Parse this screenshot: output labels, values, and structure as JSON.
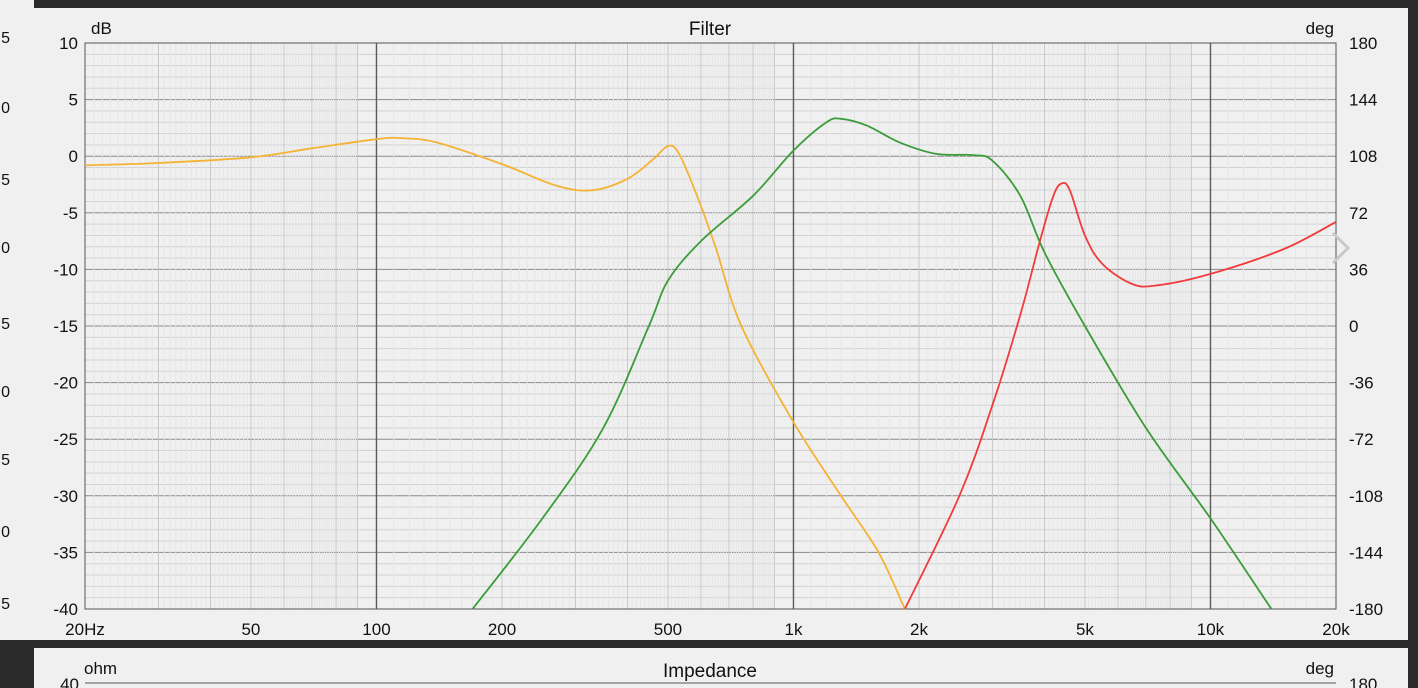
{
  "left_strip_labels": [
    "5",
    "0",
    "5",
    "0",
    "5",
    "0",
    "5",
    "0",
    "5"
  ],
  "chart_data": [
    {
      "type": "line",
      "title": "Filter",
      "xlabel": "",
      "ylabel": "dB",
      "y2label": "deg",
      "x_scale": "log",
      "xlim": [
        20,
        20000
      ],
      "ylim": [
        -40,
        10
      ],
      "y2lim": [
        -180,
        180
      ],
      "x_ticks": [
        {
          "value": 20,
          "label": "20Hz"
        },
        {
          "value": 50,
          "label": "50"
        },
        {
          "value": 100,
          "label": "100"
        },
        {
          "value": 200,
          "label": "200"
        },
        {
          "value": 500,
          "label": "500"
        },
        {
          "value": 1000,
          "label": "1k"
        },
        {
          "value": 2000,
          "label": "2k"
        },
        {
          "value": 5000,
          "label": "5k"
        },
        {
          "value": 10000,
          "label": "10k"
        },
        {
          "value": 20000,
          "label": "20k"
        }
      ],
      "y_ticks": [
        "10",
        "5",
        "0",
        "-5",
        "-10",
        "-15",
        "-20",
        "-25",
        "-30",
        "-35",
        "-40"
      ],
      "y2_ticks": [
        "180",
        "144",
        "108",
        "72",
        "36",
        "0",
        "-36",
        "-72",
        "-108",
        "-144",
        "-180"
      ],
      "grid": true,
      "series": [
        {
          "color": "#f5b335",
          "points": [
            [
              20,
              -0.8
            ],
            [
              30,
              -0.6
            ],
            [
              50,
              -0.1
            ],
            [
              70,
              0.7
            ],
            [
              100,
              1.5
            ],
            [
              115,
              1.6
            ],
            [
              140,
              1.2
            ],
            [
              200,
              -0.7
            ],
            [
              270,
              -2.6
            ],
            [
              330,
              -3.0
            ],
            [
              400,
              -2.0
            ],
            [
              460,
              -0.3
            ],
            [
              500,
              0.9
            ],
            [
              530,
              0.3
            ],
            [
              580,
              -3.0
            ],
            [
              650,
              -8
            ],
            [
              750,
              -15
            ],
            [
              1000,
              -23.5
            ],
            [
              1300,
              -30
            ],
            [
              1600,
              -35
            ],
            [
              1850,
              -40
            ]
          ]
        },
        {
          "color": "#3a9d3a",
          "points": [
            [
              170,
              -40
            ],
            [
              250,
              -32
            ],
            [
              350,
              -24
            ],
            [
              450,
              -15
            ],
            [
              500,
              -11
            ],
            [
              600,
              -7.5
            ],
            [
              800,
              -3.5
            ],
            [
              1000,
              0.5
            ],
            [
              1200,
              3.0
            ],
            [
              1300,
              3.3
            ],
            [
              1500,
              2.7
            ],
            [
              1800,
              1.2
            ],
            [
              2200,
              0.2
            ],
            [
              2700,
              0.1
            ],
            [
              3000,
              -0.4
            ],
            [
              3500,
              -3.5
            ],
            [
              4000,
              -8.5
            ],
            [
              5000,
              -15
            ],
            [
              7000,
              -24
            ],
            [
              10000,
              -32
            ],
            [
              14000,
              -40
            ]
          ]
        },
        {
          "color": "#f23b3b",
          "points": [
            [
              1850,
              -40
            ],
            [
              2500,
              -30
            ],
            [
              3000,
              -22
            ],
            [
              3500,
              -14
            ],
            [
              3900,
              -7.5
            ],
            [
              4200,
              -3.5
            ],
            [
              4400,
              -2.4
            ],
            [
              4600,
              -3.0
            ],
            [
              5000,
              -7
            ],
            [
              5500,
              -9.5
            ],
            [
              6500,
              -11.3
            ],
            [
              7500,
              -11.4
            ],
            [
              10000,
              -10.4
            ],
            [
              15000,
              -8.2
            ],
            [
              20000,
              -5.8
            ]
          ]
        }
      ]
    },
    {
      "type": "line",
      "title": "Impedance",
      "ylabel": "ohm",
      "y2label": "deg",
      "y_ticks": [
        "40"
      ],
      "y2_ticks": [
        "180"
      ]
    }
  ]
}
